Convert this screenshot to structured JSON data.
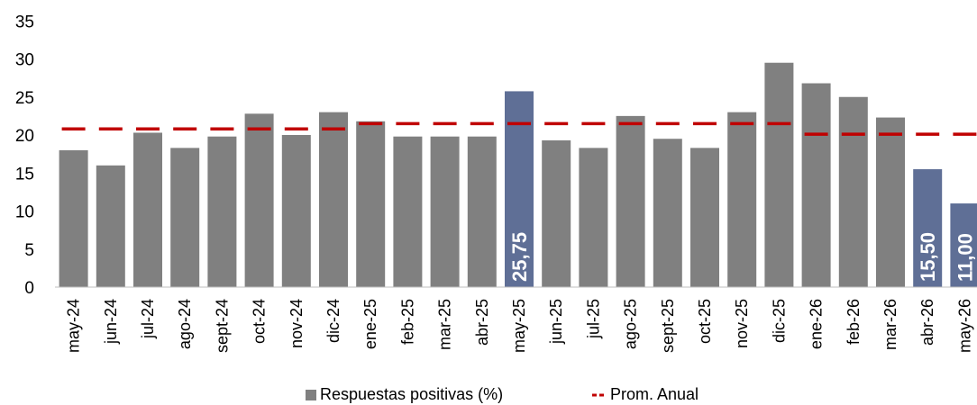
{
  "chart_data": {
    "type": "bar",
    "categories": [
      "may-24",
      "jun-24",
      "jul-24",
      "ago-24",
      "sept-24",
      "oct-24",
      "nov-24",
      "dic-24",
      "ene-25",
      "feb-25",
      "mar-25",
      "abr-25",
      "may-25",
      "jun-25",
      "jul-25",
      "ago-25",
      "sept-25",
      "oct-25",
      "nov-25",
      "dic-25",
      "ene-26",
      "feb-26",
      "mar-26",
      "abr-26",
      "may-26"
    ],
    "series": [
      {
        "name": "Respuestas positivas (%)",
        "type": "bar",
        "values": [
          18.0,
          16.0,
          20.3,
          18.3,
          19.8,
          22.8,
          20.0,
          23.0,
          21.8,
          19.8,
          19.8,
          19.8,
          25.75,
          19.3,
          18.3,
          22.5,
          19.5,
          18.3,
          23.0,
          29.5,
          26.8,
          25.0,
          22.3,
          15.5,
          11.0
        ],
        "colors": {
          "default": "#808080",
          "highlight": "#5f6f96"
        },
        "highlighted": [
          12,
          23,
          24
        ],
        "data_labels": {
          "12": "25,75",
          "23": "15,50",
          "24": "11,00"
        }
      },
      {
        "name": "Prom. Anual",
        "type": "line",
        "style": "dashed",
        "color": "#c00000",
        "values": [
          20.8,
          20.8,
          20.8,
          20.8,
          20.8,
          20.8,
          20.8,
          20.8,
          21.5,
          21.5,
          21.5,
          21.5,
          21.5,
          21.5,
          21.5,
          21.5,
          21.5,
          21.5,
          21.5,
          21.5,
          20.1,
          20.1,
          20.1,
          20.1,
          20.1
        ]
      }
    ],
    "y_ticks": [
      "0",
      "5",
      "10",
      "15",
      "20",
      "25",
      "30",
      "35"
    ],
    "ylim": [
      0,
      35
    ],
    "grid": false,
    "legend_position": "bottom"
  }
}
